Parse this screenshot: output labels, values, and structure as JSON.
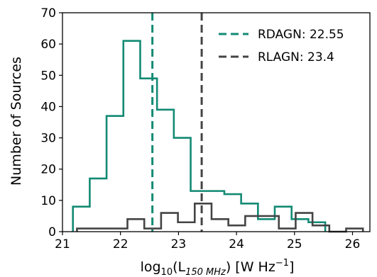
{
  "chart_data": {
    "type": "histogram",
    "xlabel": {
      "base": "log",
      "base_sub": "10",
      "open": "(L",
      "l_sub": "150 MHz",
      "close": ") [W Hz",
      "exp": "−1",
      "end": "]"
    },
    "ylabel": "Number of Sources",
    "xlim": [
      21.0,
      26.3
    ],
    "ylim": [
      0,
      70
    ],
    "xticks": [
      21,
      22,
      23,
      24,
      25,
      26
    ],
    "yticks": [
      0,
      10,
      20,
      30,
      40,
      50,
      60,
      70
    ],
    "grid": false,
    "legend_position": "top-right",
    "series": [
      {
        "color": "#138a74",
        "bin_edges": [
          21.18,
          21.47,
          21.76,
          22.05,
          22.34,
          22.63,
          22.92,
          23.21,
          23.5,
          23.79,
          24.08,
          24.37,
          24.66,
          24.95,
          25.24,
          25.53
        ],
        "counts": [
          8,
          17,
          37,
          61,
          49,
          39,
          30,
          13,
          13,
          12,
          9,
          4,
          8,
          4,
          3
        ]
      },
      {
        "color": "#444444",
        "bin_edges": [
          21.25,
          21.54,
          21.83,
          22.12,
          22.41,
          22.7,
          22.99,
          23.28,
          23.57,
          23.86,
          24.15,
          24.44,
          24.73,
          25.02,
          25.31,
          25.6,
          25.89,
          26.18
        ],
        "counts": [
          1,
          1,
          1,
          4,
          1,
          6,
          3,
          9,
          4,
          2,
          5,
          5,
          1,
          6,
          2,
          0,
          1
        ]
      }
    ],
    "vlines": [
      {
        "label": "RDAGN: 22.55",
        "x": 22.55,
        "color": "#138a74",
        "style": "dashed"
      },
      {
        "label": "RLAGN: 23.4",
        "x": 23.4,
        "color": "#444444",
        "style": "dashed"
      }
    ]
  }
}
